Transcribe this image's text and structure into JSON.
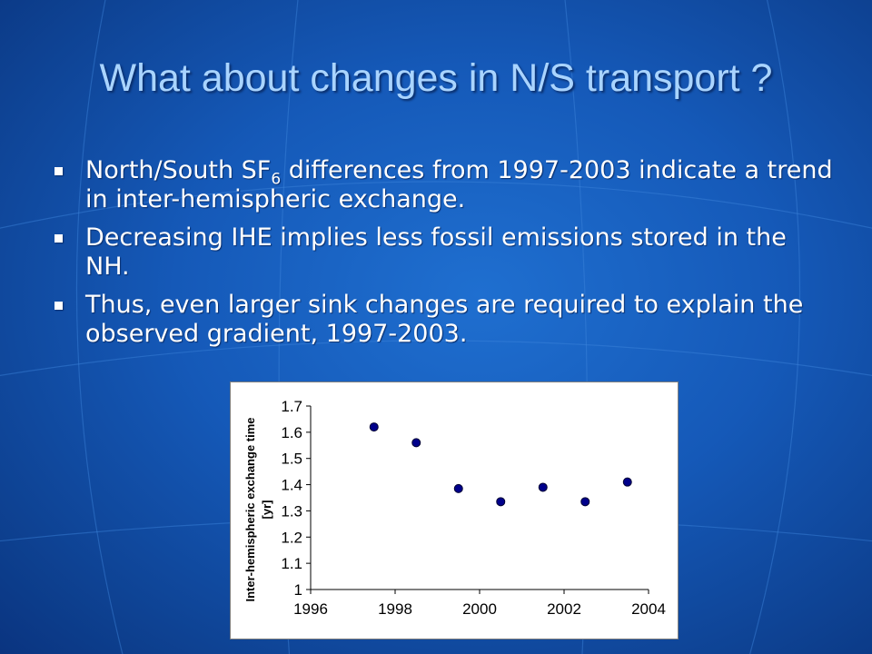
{
  "slide": {
    "title": "What about changes in N/S transport ?",
    "bullets": [
      {
        "text_a": "North/South SF",
        "sub": "6",
        "text_b": " differences from 1997-2003 indicate a trend in inter-hemispheric exchange."
      },
      {
        "text": "Decreasing IHE implies less fossil emissions stored in the NH."
      },
      {
        "text": "Thus, even larger sink changes are required to explain the observed gradient, 1997-2003."
      }
    ]
  },
  "colors": {
    "background": "#1559b8",
    "title": "#a9d4ff",
    "marker": "#00008b"
  },
  "chart_data": {
    "type": "scatter",
    "ylabel_line1": "Inter-hemispheric exchange time",
    "ylabel_line2": "[yr]",
    "xlabel": "",
    "xlim": [
      1996,
      2004
    ],
    "ylim": [
      1,
      1.7
    ],
    "xticks": [
      "1996",
      "1998",
      "2000",
      "2002",
      "2004"
    ],
    "yticks": [
      "1",
      "1.1",
      "1.2",
      "1.3",
      "1.4",
      "1.5",
      "1.6",
      "1.7"
    ],
    "grid": false,
    "x": [
      1997.5,
      1998.5,
      1999.5,
      2000.5,
      2001.5,
      2002.5,
      2003.5
    ],
    "y": [
      1.62,
      1.56,
      1.385,
      1.335,
      1.39,
      1.335,
      1.41
    ]
  }
}
